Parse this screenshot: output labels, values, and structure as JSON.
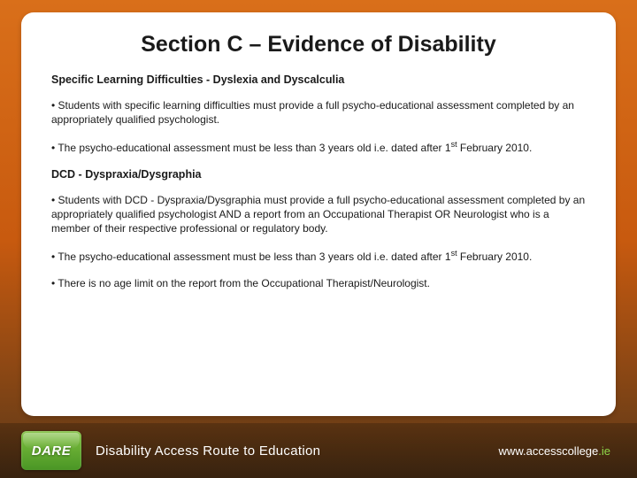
{
  "slide": {
    "title": "Section C – Evidence of Disability",
    "sub1": "Specific Learning Difficulties - Dyslexia and Dyscalculia",
    "p1": "• Students with specific learning difficulties must provide a full psycho-educational assessment completed by an appropriately qualified psychologist.",
    "p2a": "• The psycho-educational assessment must be less than 3 years old i.e. dated after 1",
    "p2sup": "st",
    "p2b": " February 2010.",
    "sub2": "DCD - Dyspraxia/Dysgraphia",
    "p3": "• Students with DCD - Dyspraxia/Dysgraphia must provide a full psycho-educational assessment completed by an appropriately qualified psychologist AND a report from an Occupational Therapist OR Neurologist who is a member of their respective professional or regulatory body.",
    "p4a": "• The psycho-educational assessment must be less than 3 years old i.e. dated after 1",
    "p4sup": "st",
    "p4b": " February 2010.",
    "p5": "• There is no age limit on the report from the Occupational Therapist/Neurologist."
  },
  "footer": {
    "logo_text": "DARE",
    "tagline": "Disability Access Route to Education",
    "url_prefix": "www.",
    "url_main": "accesscollege",
    "url_suffix": ".ie"
  },
  "colors": {
    "bg_top": "#d96f1a",
    "bg_mid": "#c85a0f",
    "bg_bottom": "#5a3818",
    "card_bg": "#ffffff",
    "text": "#1a1a1a",
    "logo_green_top": "#7fbf3f",
    "logo_green_bottom": "#4a9625",
    "url_green": "#8fd84a"
  }
}
